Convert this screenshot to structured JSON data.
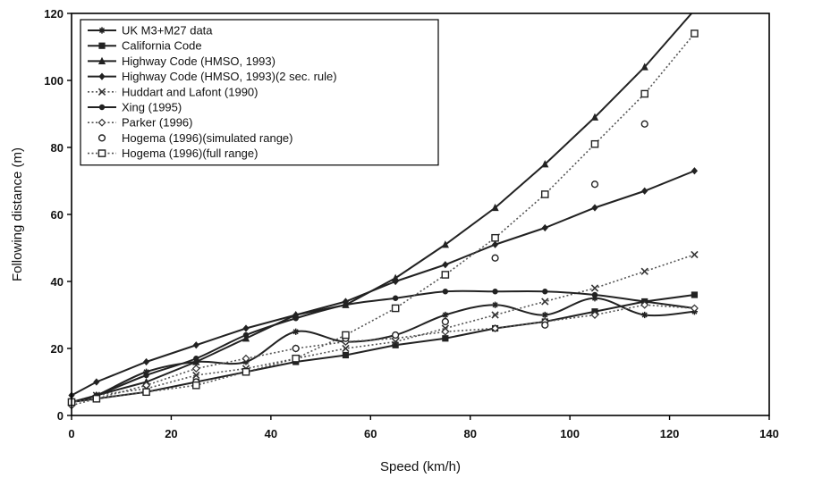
{
  "chart_data": {
    "type": "line",
    "xlabel": "Speed (km/h)",
    "ylabel": "Following distance (m)",
    "xlim": [
      0,
      140
    ],
    "ylim": [
      0,
      120
    ],
    "xticks": [
      0,
      20,
      40,
      60,
      80,
      100,
      120,
      140
    ],
    "yticks": [
      0,
      20,
      40,
      60,
      80,
      100,
      120
    ],
    "grid": false,
    "legend_position": "top-left",
    "series": [
      {
        "name": "UK M3+M27 data",
        "marker": "star",
        "line": "solid",
        "smooth": true,
        "x": [
          0,
          5,
          15,
          25,
          35,
          45,
          55,
          65,
          75,
          85,
          95,
          105,
          115,
          125
        ],
        "y": [
          4,
          6,
          13,
          16,
          16,
          25,
          22,
          24,
          30,
          33,
          30,
          35,
          30,
          31
        ]
      },
      {
        "name": "California Code",
        "marker": "square",
        "line": "solid",
        "x": [
          0,
          5,
          15,
          25,
          35,
          45,
          55,
          65,
          75,
          85,
          95,
          105,
          115,
          125
        ],
        "y": [
          4,
          5,
          7,
          10,
          13,
          16,
          18,
          21,
          23,
          26,
          28,
          31,
          34,
          36
        ]
      },
      {
        "name": "Highway Code (HMSO, 1993)",
        "marker": "triangle",
        "line": "solid",
        "x": [
          0,
          5,
          15,
          25,
          35,
          45,
          55,
          65,
          75,
          85,
          95,
          105,
          115,
          125
        ],
        "y": [
          4,
          6,
          10,
          16,
          23,
          30,
          33,
          41,
          51,
          62,
          75,
          89,
          104,
          121
        ]
      },
      {
        "name": "Highway Code (HMSO, 1993)(2 sec. rule)",
        "marker": "diamond",
        "line": "solid",
        "x": [
          0,
          5,
          15,
          25,
          35,
          45,
          55,
          65,
          75,
          85,
          95,
          105,
          115,
          125
        ],
        "y": [
          6,
          10,
          16,
          21,
          26,
          30,
          34,
          40,
          45,
          51,
          56,
          62,
          67,
          73
        ]
      },
      {
        "name": "Huddart and Lafont (1990)",
        "marker": "x",
        "line": "dotted",
        "x": [
          0,
          5,
          15,
          25,
          35,
          45,
          55,
          65,
          75,
          85,
          95,
          105,
          115,
          125
        ],
        "y": [
          4,
          6,
          8,
          12,
          14,
          17,
          20,
          22,
          26,
          30,
          34,
          38,
          43,
          48
        ]
      },
      {
        "name": "Xing (1995)",
        "marker": "dot",
        "line": "solid",
        "smooth": true,
        "x": [
          0,
          5,
          15,
          25,
          35,
          45,
          55,
          65,
          75,
          85,
          95,
          105,
          115,
          125
        ],
        "y": [
          4,
          6,
          12,
          17,
          24,
          29,
          33,
          35,
          37,
          37,
          37,
          36,
          34,
          32
        ]
      },
      {
        "name": "Parker (1996)",
        "marker": "diamond-open",
        "line": "dotted",
        "x": [
          0,
          5,
          15,
          25,
          35,
          45,
          55,
          65,
          75,
          85,
          95,
          105,
          115,
          125
        ],
        "y": [
          3,
          5,
          9,
          14,
          17,
          20,
          22,
          23,
          25,
          26,
          28,
          30,
          33,
          32
        ]
      },
      {
        "name": "Hogema (1996)(simulated range)",
        "marker": "circle-open",
        "line": "none",
        "x": [
          25,
          35,
          45,
          55,
          65,
          75,
          85,
          95,
          105,
          115
        ],
        "y": [
          10,
          13,
          20,
          23,
          24,
          28,
          47,
          27,
          69,
          87
        ]
      },
      {
        "name": "Hogema (1996)(full range)",
        "marker": "square-open",
        "line": "dotted",
        "x": [
          0,
          5,
          15,
          25,
          35,
          45,
          55,
          65,
          75,
          85,
          95,
          105,
          115,
          125
        ],
        "y": [
          4,
          5,
          7,
          9,
          13,
          17,
          24,
          32,
          42,
          53,
          66,
          81,
          96,
          114
        ]
      }
    ]
  }
}
